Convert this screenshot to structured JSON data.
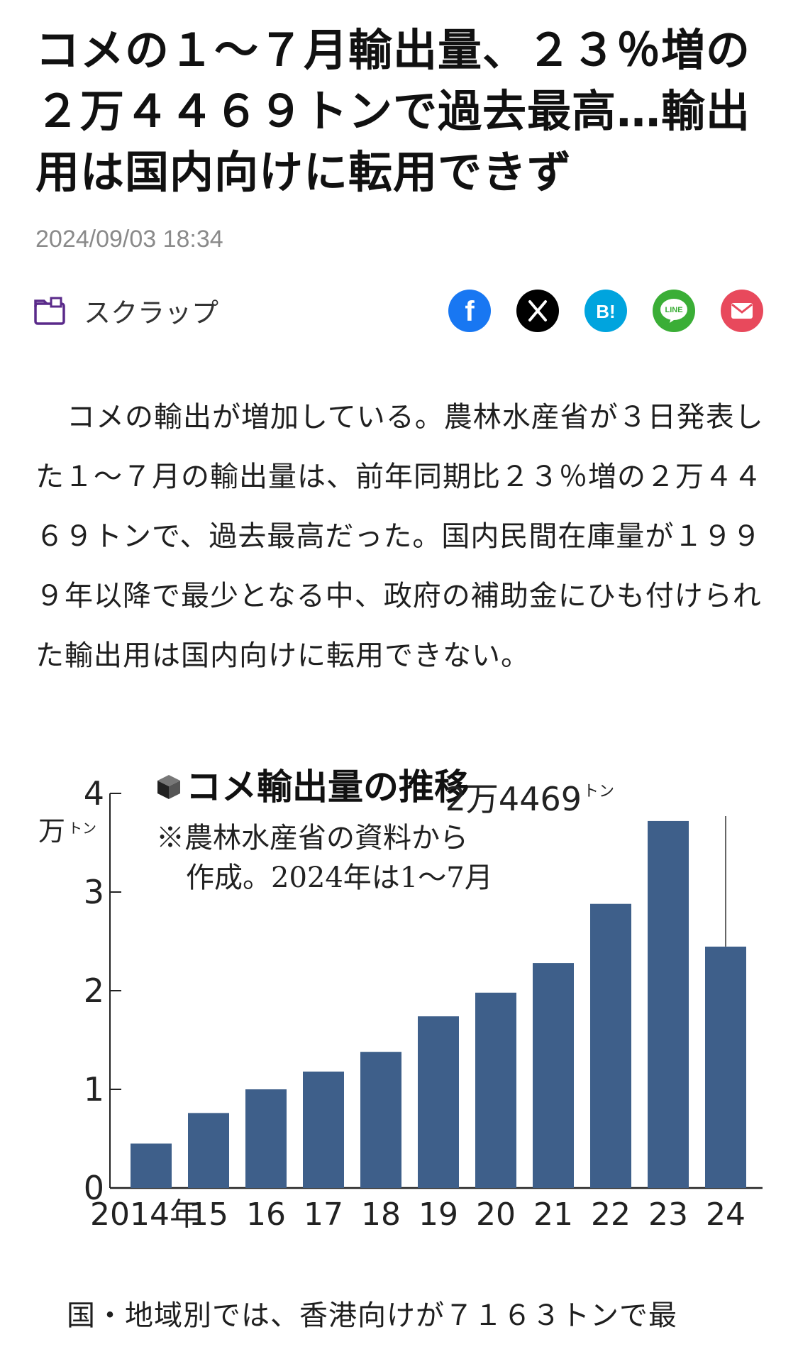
{
  "article": {
    "title": "コメの１～７月輸出量、２３％増の２万４４６９トンで過去最高…輸出用は国内向けに転用できず",
    "timestamp": "2024/09/03 18:34",
    "scrap_label": "スクラップ",
    "share": [
      {
        "name": "facebook",
        "icon": "facebook-icon",
        "glyph": "f",
        "color": "#1877f2"
      },
      {
        "name": "x",
        "icon": "x-icon",
        "glyph": "𝕏",
        "color": "#000000"
      },
      {
        "name": "hatena",
        "icon": "hatena-bookmark-icon",
        "glyph": "B!",
        "color": "#00a4de"
      },
      {
        "name": "line",
        "icon": "line-icon",
        "glyph": "LINE",
        "color": "#3aae36"
      },
      {
        "name": "mail",
        "icon": "mail-icon",
        "glyph": "✉",
        "color": "#e8495c"
      }
    ],
    "paragraph1": "コメの輸出が増加している。農林水産省が３日発表した１～７月の輸出量は、前年同期比２３％増の２万４４６９トンで、過去最高だった。国内民間在庫量が１９９９年以降で最少となる中、政府の補助金にひも付けられた輸出用は国内向けに転用できない。",
    "paragraph2": "国・地域別では、香港向けが７１６３トンで最"
  },
  "chart_data": {
    "type": "bar",
    "title": "コメ輸出量の推移",
    "note_line1": "※農林水産省の資料から",
    "note_line2": "作成。2024年は1～7月",
    "ylabel": "万トン",
    "ylabel_main": "万",
    "ylabel_unit": "トン",
    "ylim": [
      0,
      4
    ],
    "yticks": [
      "0",
      "1",
      "2",
      "3",
      "4"
    ],
    "categories": [
      "2014年",
      "15",
      "16",
      "17",
      "18",
      "19",
      "20",
      "21",
      "22",
      "23",
      "24"
    ],
    "values": [
      0.45,
      0.76,
      1.0,
      1.18,
      1.38,
      1.74,
      1.98,
      2.28,
      2.88,
      3.72,
      2.4469
    ],
    "annotation": "2万4469トン",
    "annotation_main": "2万4469",
    "annotation_unit": "トン",
    "bar_color": "#3e5f8a",
    "grid": false
  }
}
